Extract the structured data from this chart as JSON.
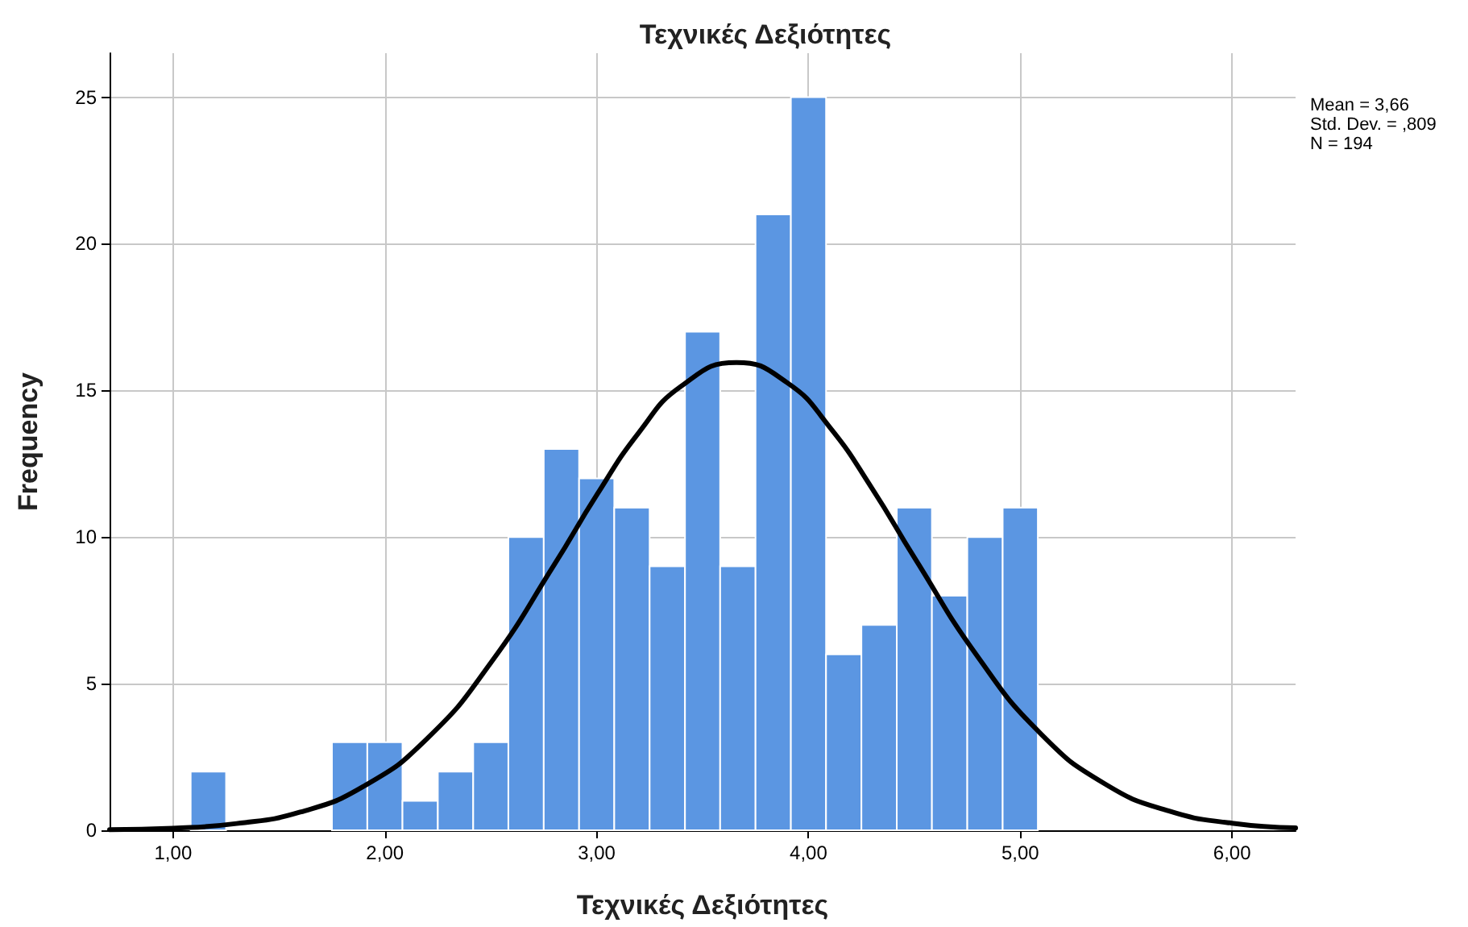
{
  "chart_data": {
    "type": "histogram",
    "title": "Τεχνικές Δεξιότητες",
    "xlabel": "Τεχνικές Δεξιότητες",
    "ylabel": "Frequency",
    "bins": [
      1.083,
      1.25,
      1.417,
      1.583,
      1.75,
      1.917,
      2.083,
      2.25,
      2.417,
      2.583,
      2.75,
      2.917,
      3.083,
      3.25,
      3.417,
      3.583,
      3.75,
      3.917,
      4.083,
      4.25,
      4.417,
      4.583,
      4.75,
      4.917,
      5.083
    ],
    "series": [
      {
        "color": "#5b96e2",
        "values": [
          2,
          0,
          0,
          0,
          3,
          3,
          1,
          2,
          3,
          10,
          13,
          12,
          11,
          9,
          17,
          9,
          21,
          25,
          6,
          7,
          11,
          8,
          10,
          11
        ]
      },
      {
        "type": "line",
        "color": "#000000",
        "x": [
          0.7,
          1.0,
          1.3,
          1.6,
          1.9,
          2.2,
          2.5,
          2.8,
          3.0,
          3.2,
          3.4,
          3.66,
          3.9,
          4.1,
          4.3,
          4.5,
          4.8,
          5.1,
          5.4,
          5.7,
          6.0,
          6.3
        ],
        "values": [
          0.02,
          0.07,
          0.23,
          0.62,
          1.5,
          3.13,
          5.71,
          9.06,
          11.43,
          13.57,
          15.15,
          15.95,
          15.26,
          13.75,
          11.66,
          9.3,
          5.91,
          3.27,
          1.58,
          0.66,
          0.24,
          0.08
        ]
      }
    ],
    "xlim": [
      0.7,
      6.3
    ],
    "xticks": [
      {
        "value": 1,
        "label": "1,00"
      },
      {
        "value": 2,
        "label": "2,00"
      },
      {
        "value": 3,
        "label": "3,00"
      },
      {
        "value": 4,
        "label": "4,00"
      },
      {
        "value": 5,
        "label": "5,00"
      },
      {
        "value": 6,
        "label": "6,00"
      }
    ],
    "ylim": [
      0,
      26.5
    ],
    "yticks": [
      0,
      5,
      10,
      15,
      20,
      25
    ],
    "grid": true,
    "marker": "none",
    "line_style": "solid",
    "annotations": [
      "Mean = 3,66",
      "Std. Dev. = ,809",
      "N = 194"
    ]
  }
}
